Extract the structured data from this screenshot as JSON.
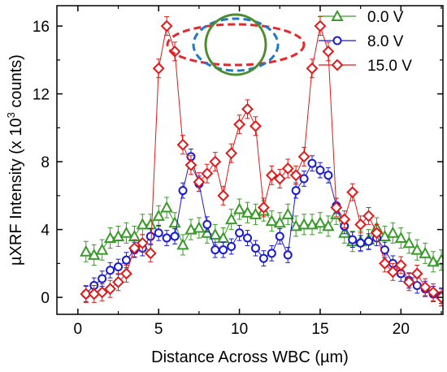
{
  "chart_data": {
    "type": "scatter",
    "xlabel": "Distance Across WBC (µm)",
    "ylabel_prefix": "µXRF Intensity (x 10",
    "ylabel_sup": "3",
    "ylabel_suffix": " counts)",
    "xlim": [
      -1.3,
      22.6
    ],
    "ylim": [
      -1.0,
      17.2
    ],
    "xticks": [
      0,
      5,
      10,
      15,
      20
    ],
    "yticks": [
      0,
      4,
      8,
      12,
      16
    ],
    "tick_labels_x": [
      "0",
      "5",
      "10",
      "15",
      "20"
    ],
    "tick_labels_y": [
      "0",
      "4",
      "8",
      "12",
      "16"
    ],
    "legend_position": "top-right",
    "inset": {
      "description_shapes": [
        "outer-ellipse",
        "middle-ellipse",
        "inner-circle"
      ],
      "colors": [
        "#e8262b",
        "#1f78c8",
        "#4d8c2f"
      ]
    },
    "series": [
      {
        "name": "0.0 V",
        "color": "#3a9a2a",
        "marker": "triangle",
        "x": [
          0.5,
          1.0,
          1.5,
          2.0,
          2.5,
          3.0,
          3.5,
          4.0,
          4.5,
          5.0,
          5.5,
          6.0,
          6.5,
          7.0,
          7.5,
          8.0,
          8.5,
          9.0,
          9.5,
          10.0,
          10.5,
          11.0,
          11.5,
          12.0,
          12.5,
          13.0,
          13.5,
          14.0,
          14.5,
          15.0,
          15.5,
          16.0,
          16.5,
          17.0,
          17.5,
          18.0,
          18.5,
          19.0,
          19.5,
          20.0,
          20.5,
          21.0,
          21.5,
          22.0,
          22.5
        ],
        "y": [
          2.7,
          2.5,
          2.8,
          3.5,
          3.6,
          3.8,
          3.6,
          4.3,
          4.3,
          4.8,
          5.3,
          4.4,
          3.1,
          4.0,
          4.1,
          3.8,
          3.7,
          3.5,
          4.6,
          5.2,
          5.0,
          4.9,
          5.1,
          4.5,
          4.4,
          4.9,
          4.2,
          4.3,
          4.3,
          4.4,
          4.2,
          4.9,
          3.8,
          3.3,
          3.3,
          3.4,
          4.1,
          3.6,
          3.8,
          3.5,
          3.2,
          2.8,
          2.6,
          2.1,
          2.2
        ],
        "errors": [
          0.6,
          0.6,
          0.6,
          0.6,
          0.6,
          0.6,
          0.6,
          0.6,
          0.6,
          0.6,
          0.6,
          0.6,
          0.6,
          0.6,
          0.6,
          0.6,
          0.6,
          0.6,
          0.6,
          0.6,
          0.6,
          0.6,
          0.6,
          0.6,
          0.6,
          0.6,
          0.6,
          0.6,
          0.6,
          0.6,
          0.6,
          0.6,
          0.6,
          0.6,
          0.6,
          0.6,
          0.6,
          0.6,
          0.6,
          0.6,
          0.6,
          0.6,
          0.6,
          0.6,
          0.6
        ]
      },
      {
        "name": "8.0 V",
        "color": "#1a1ad0",
        "marker": "circle",
        "x": [
          0.5,
          1.0,
          1.5,
          2.0,
          2.5,
          3.0,
          3.5,
          4.0,
          4.5,
          5.0,
          5.5,
          6.0,
          6.5,
          7.0,
          7.5,
          8.0,
          8.5,
          9.0,
          9.5,
          10.0,
          10.5,
          11.0,
          11.5,
          12.0,
          12.5,
          13.0,
          13.5,
          14.0,
          14.5,
          15.0,
          15.5,
          16.0,
          16.5,
          17.0,
          17.5,
          18.0,
          18.5,
          19.0,
          19.5,
          20.0,
          20.5,
          21.0,
          21.5,
          22.0,
          22.5
        ],
        "y": [
          0.2,
          0.7,
          1.1,
          1.6,
          1.8,
          2.2,
          2.8,
          2.9,
          3.6,
          3.8,
          3.5,
          3.6,
          6.3,
          8.3,
          6.7,
          4.3,
          2.8,
          2.8,
          3.0,
          3.8,
          3.5,
          2.9,
          2.3,
          2.6,
          3.6,
          2.5,
          6.3,
          7.0,
          7.9,
          7.5,
          7.2,
          5.4,
          4.2,
          3.4,
          3.2,
          3.3,
          3.5,
          2.8,
          2.0,
          1.4,
          1.0,
          0.7,
          0.5,
          0.2,
          0.1
        ],
        "errors": [
          0.45,
          0.45,
          0.45,
          0.45,
          0.45,
          0.45,
          0.45,
          0.45,
          0.45,
          0.45,
          0.45,
          0.45,
          0.45,
          0.45,
          0.45,
          0.45,
          0.45,
          0.45,
          0.45,
          0.45,
          0.45,
          0.45,
          0.45,
          0.45,
          0.45,
          0.45,
          0.45,
          0.45,
          0.45,
          0.45,
          0.45,
          0.45,
          0.45,
          0.45,
          0.45,
          0.45,
          0.45,
          0.45,
          0.45,
          0.45,
          0.45,
          0.45,
          0.45,
          0.45,
          0.45
        ]
      },
      {
        "name": "15.0 V",
        "color": "#e01a1a",
        "marker": "diamond",
        "x": [
          0.5,
          1.0,
          1.5,
          2.0,
          2.5,
          3.0,
          3.5,
          4.0,
          4.5,
          5.0,
          5.5,
          6.0,
          6.5,
          7.0,
          7.5,
          8.0,
          8.5,
          9.0,
          9.5,
          10.0,
          10.5,
          11.0,
          11.5,
          12.0,
          12.5,
          13.0,
          13.5,
          14.0,
          14.5,
          15.0,
          15.5,
          16.0,
          16.5,
          17.0,
          17.5,
          18.0,
          18.5,
          19.0,
          19.5,
          20.0,
          20.5,
          21.0,
          21.5,
          22.0,
          22.5
        ],
        "y": [
          0.2,
          0.2,
          0.3,
          0.5,
          0.9,
          1.4,
          2.9,
          3.2,
          2.6,
          13.5,
          16.0,
          14.5,
          9.0,
          7.8,
          6.8,
          7.3,
          8.0,
          6.0,
          8.5,
          10.2,
          11.1,
          10.1,
          5.3,
          7.2,
          7.0,
          7.6,
          7.2,
          8.3,
          13.5,
          16.0,
          14.5,
          5.3,
          4.6,
          6.2,
          4.3,
          4.8,
          3.8,
          2.0,
          1.5,
          1.9,
          0.9,
          1.4,
          0.6,
          0.3,
          0.0
        ],
        "errors": [
          0.5,
          0.5,
          0.5,
          0.5,
          0.5,
          0.5,
          0.5,
          0.5,
          0.5,
          0.55,
          0.55,
          0.55,
          0.55,
          0.55,
          0.55,
          0.55,
          0.55,
          0.55,
          0.55,
          0.55,
          0.55,
          0.55,
          0.55,
          0.55,
          0.55,
          0.55,
          0.55,
          0.55,
          0.55,
          0.55,
          0.55,
          0.55,
          0.5,
          0.5,
          0.5,
          0.5,
          0.5,
          0.5,
          0.5,
          0.5,
          0.5,
          0.5,
          0.5,
          0.5,
          0.5
        ]
      }
    ]
  }
}
